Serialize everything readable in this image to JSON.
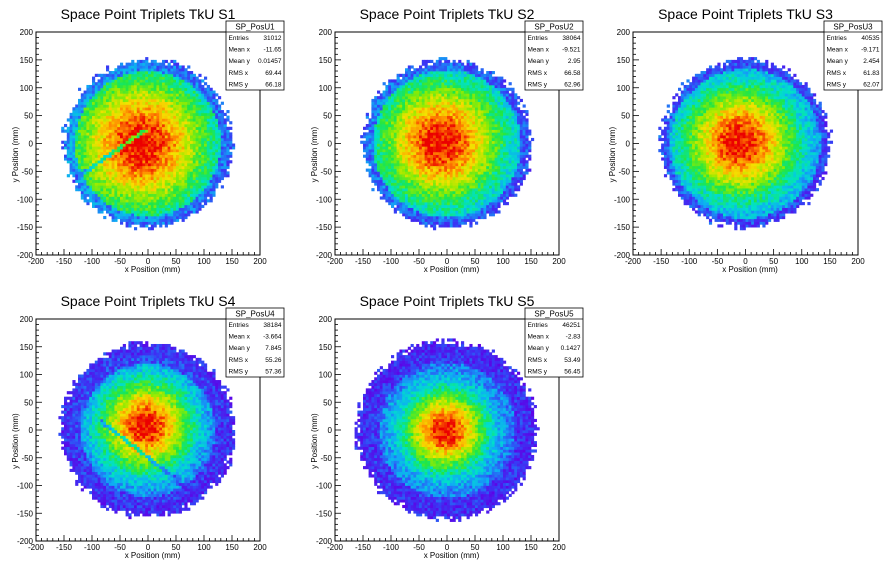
{
  "chart_data": [
    {
      "type": "heatmap",
      "title": "Space Point Triplets TkU S1",
      "xlabel": "x Position (mm)",
      "ylabel": "y Position (mm)",
      "xlim": [
        -200,
        200
      ],
      "ylim": [
        -200,
        200
      ],
      "xticks": [
        -200,
        -150,
        -100,
        -50,
        0,
        50,
        100,
        150,
        200
      ],
      "yticks": [
        -200,
        -150,
        -100,
        -50,
        0,
        50,
        100,
        150,
        200
      ],
      "stats": {
        "name": "SP_PosU1",
        "rows": [
          {
            "label": "Entries",
            "value": "31012"
          },
          {
            "label": "Mean x",
            "value": "-11.65"
          },
          {
            "label": "Mean y",
            "value": "0.01457"
          },
          {
            "label": "RMS x",
            "value": "69.44"
          },
          {
            "label": "RMS y",
            "value": "66.18"
          }
        ]
      },
      "distribution": {
        "radius": 150,
        "cx": -12,
        "cy": 0,
        "sigma": 90,
        "ring_mm": 20,
        "stripe": {
          "angle_deg": 35,
          "x0": -40,
          "y0": 0,
          "sign": 1
        }
      }
    },
    {
      "type": "heatmap",
      "title": "Space Point Triplets TkU S2",
      "xlabel": "x Position (mm)",
      "ylabel": "y Position (mm)",
      "xlim": [
        -200,
        200
      ],
      "ylim": [
        -200,
        200
      ],
      "xticks": [
        -200,
        -150,
        -100,
        -50,
        0,
        50,
        100,
        150,
        200
      ],
      "yticks": [
        -200,
        -150,
        -100,
        -50,
        0,
        50,
        100,
        150,
        200
      ],
      "stats": {
        "name": "SP_PosU2",
        "rows": [
          {
            "label": "Entries",
            "value": "38064"
          },
          {
            "label": "Mean x",
            "value": "-9.521"
          },
          {
            "label": "Mean y",
            "value": "2.95"
          },
          {
            "label": "RMS x",
            "value": "66.58"
          },
          {
            "label": "RMS y",
            "value": "62.96"
          }
        ]
      },
      "distribution": {
        "radius": 150,
        "cx": -10,
        "cy": 3,
        "sigma": 80,
        "ring_mm": 18,
        "stripe": null
      }
    },
    {
      "type": "heatmap",
      "title": "Space Point Triplets TkU S3",
      "xlabel": "x Position (mm)",
      "ylabel": "y Position (mm)",
      "xlim": [
        -200,
        200
      ],
      "ylim": [
        -200,
        200
      ],
      "xticks": [
        -200,
        -150,
        -100,
        -50,
        0,
        50,
        100,
        150,
        200
      ],
      "yticks": [
        -200,
        -150,
        -100,
        -50,
        0,
        50,
        100,
        150,
        200
      ],
      "stats": {
        "name": "SP_PosU3",
        "rows": [
          {
            "label": "Entries",
            "value": "40535"
          },
          {
            "label": "Mean x",
            "value": "-9.171"
          },
          {
            "label": "Mean y",
            "value": "2.454"
          },
          {
            "label": "RMS x",
            "value": "61.83"
          },
          {
            "label": "RMS y",
            "value": "62.07"
          }
        ]
      },
      "distribution": {
        "radius": 150,
        "cx": -10,
        "cy": 3,
        "sigma": 72,
        "ring_mm": 16,
        "stripe": null
      }
    },
    {
      "type": "heatmap",
      "title": "Space Point Triplets TkU S4",
      "xlabel": "x Position (mm)",
      "ylabel": "y Position (mm)",
      "xlim": [
        -200,
        200
      ],
      "ylim": [
        -200,
        200
      ],
      "xticks": [
        -200,
        -150,
        -100,
        -50,
        0,
        50,
        100,
        150,
        200
      ],
      "yticks": [
        -200,
        -150,
        -100,
        -50,
        0,
        50,
        100,
        150,
        200
      ],
      "stats": {
        "name": "SP_PosU4",
        "rows": [
          {
            "label": "Entries",
            "value": "38184"
          },
          {
            "label": "Mean x",
            "value": "-3.664"
          },
          {
            "label": "Mean y",
            "value": "7.845"
          },
          {
            "label": "RMS x",
            "value": "55.26"
          },
          {
            "label": "RMS y",
            "value": "57.36"
          }
        ]
      },
      "distribution": {
        "radius": 155,
        "cx": -4,
        "cy": 8,
        "sigma": 58,
        "ring_mm": 35,
        "stripe": {
          "angle_deg": -38,
          "x0": -50,
          "y0": -10,
          "sign": -1
        }
      }
    },
    {
      "type": "heatmap",
      "title": "Space Point Triplets TkU S5",
      "xlabel": "x Position (mm)",
      "ylabel": "y Position (mm)",
      "xlim": [
        -200,
        200
      ],
      "ylim": [
        -200,
        200
      ],
      "xticks": [
        -200,
        -150,
        -100,
        -50,
        0,
        50,
        100,
        150,
        200
      ],
      "yticks": [
        -200,
        -150,
        -100,
        -50,
        0,
        50,
        100,
        150,
        200
      ],
      "stats": {
        "name": "SP_PosU5",
        "rows": [
          {
            "label": "Entries",
            "value": "46251"
          },
          {
            "label": "Mean x",
            "value": "-2.83"
          },
          {
            "label": "Mean y",
            "value": "0.1427"
          },
          {
            "label": "RMS x",
            "value": "53.49"
          },
          {
            "label": "RMS y",
            "value": "56.45"
          }
        ]
      },
      "distribution": {
        "radius": 160,
        "cx": -3,
        "cy": 0,
        "sigma": 52,
        "ring_mm": 38,
        "stripe": null
      }
    }
  ]
}
